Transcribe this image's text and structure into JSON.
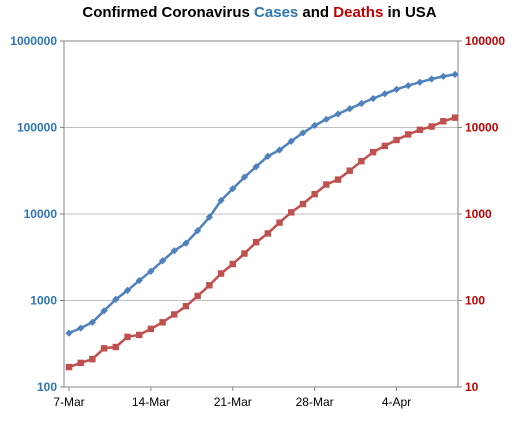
{
  "chart_data": {
    "type": "line",
    "title_parts": [
      {
        "text": "Confirmed Coronavirus ",
        "color": "#000000"
      },
      {
        "text": "Cases",
        "color": "#2e75b6"
      },
      {
        "text": " and ",
        "color": "#000000"
      },
      {
        "text": "Deaths",
        "color": "#c00000"
      },
      {
        "text": " in USA",
        "color": "#000000"
      }
    ],
    "x": [
      "2020-03-07",
      "2020-03-08",
      "2020-03-09",
      "2020-03-10",
      "2020-03-11",
      "2020-03-12",
      "2020-03-13",
      "2020-03-14",
      "2020-03-15",
      "2020-03-16",
      "2020-03-17",
      "2020-03-18",
      "2020-03-19",
      "2020-03-20",
      "2020-03-21",
      "2020-03-22",
      "2020-03-23",
      "2020-03-24",
      "2020-03-25",
      "2020-03-26",
      "2020-03-27",
      "2020-03-28",
      "2020-03-29",
      "2020-03-30",
      "2020-03-31",
      "2020-04-01",
      "2020-04-02",
      "2020-04-03",
      "2020-04-04",
      "2020-04-05",
      "2020-04-06",
      "2020-04-07",
      "2020-04-08",
      "2020-04-09"
    ],
    "x_ticks": [
      {
        "date": "2020-03-07",
        "label": "7-Mar"
      },
      {
        "date": "2020-03-14",
        "label": "14-Mar"
      },
      {
        "date": "2020-03-21",
        "label": "21-Mar"
      },
      {
        "date": "2020-03-28",
        "label": "28-Mar"
      },
      {
        "date": "2020-04-04",
        "label": "4-Apr"
      }
    ],
    "y_left": {
      "scale": "log",
      "range": [
        100,
        1000000
      ],
      "ticks": [
        "100",
        "1000",
        "10000",
        "100000",
        "1000000"
      ],
      "color": "#2e75b6"
    },
    "y_right": {
      "scale": "log",
      "range": [
        10,
        100000
      ],
      "ticks": [
        "10",
        "100",
        "1000",
        "10000",
        "100000"
      ],
      "color": "#c00000"
    },
    "grid": "horizontal",
    "series": [
      {
        "name": "Cases",
        "axis": "left",
        "color": "#4f81bd",
        "marker": "diamond",
        "values": [
          420,
          480,
          560,
          760,
          1030,
          1310,
          1700,
          2180,
          2880,
          3760,
          4600,
          6420,
          9190,
          14350,
          19620,
          26730,
          35210,
          46540,
          54950,
          69310,
          86570,
          105570,
          124340,
          143320,
          164900,
          189300,
          216120,
          245170,
          276130,
          304750,
          333810,
          363870,
          390000,
          411000
        ]
      },
      {
        "name": "Deaths",
        "axis": "right",
        "color": "#c0504d",
        "marker": "square",
        "values": [
          17,
          19,
          21,
          28,
          29,
          38,
          40,
          47,
          56,
          69,
          86,
          113,
          150,
          205,
          264,
          349,
          472,
          596,
          795,
          1045,
          1305,
          1695,
          2195,
          2500,
          3170,
          4080,
          5190,
          6130,
          7170,
          8310,
          9400,
          10260,
          11800,
          13000
        ]
      }
    ]
  },
  "colors": {
    "frame": "#868686",
    "grid": "#bfbfbf",
    "cases_axis": "#2e75b6",
    "deaths_axis": "#c00000"
  }
}
